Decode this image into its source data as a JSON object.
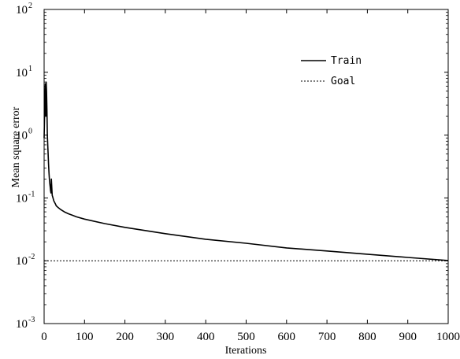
{
  "chart_data": {
    "type": "line",
    "title": "",
    "xlabel": "Iterations",
    "ylabel": "Mean square error",
    "xlim": [
      0,
      1000
    ],
    "ylim": [
      0.001,
      100
    ],
    "yscale": "log",
    "grid": false,
    "legend_position": "top-right",
    "x_ticks": [
      "0",
      "100",
      "200",
      "300",
      "400",
      "500",
      "600",
      "700",
      "800",
      "900",
      "1000"
    ],
    "y_ticks": [
      {
        "value": 0.001,
        "base": "10",
        "exp": "-3"
      },
      {
        "value": 0.01,
        "base": "10",
        "exp": "-2"
      },
      {
        "value": 0.1,
        "base": "10",
        "exp": "-1"
      },
      {
        "value": 1,
        "base": "10",
        "exp": "0"
      },
      {
        "value": 10,
        "base": "10",
        "exp": "1"
      },
      {
        "value": 100,
        "base": "10",
        "exp": "2"
      }
    ],
    "series": [
      {
        "name": "Train",
        "style": "solid",
        "color": "#000000",
        "x": [
          0,
          2,
          3,
          4,
          5,
          6,
          7,
          8,
          9,
          10,
          11,
          12,
          13,
          14,
          15,
          16,
          17,
          18,
          19,
          20,
          22,
          24,
          26,
          28,
          30,
          35,
          40,
          50,
          60,
          70,
          80,
          100,
          150,
          200,
          300,
          400,
          500,
          600,
          700,
          800,
          900,
          1000
        ],
        "y": [
          0.9,
          3.5,
          6.5,
          2.0,
          7.0,
          5.0,
          2.5,
          1.0,
          0.7,
          0.5,
          0.35,
          0.25,
          0.2,
          0.17,
          0.15,
          0.13,
          0.12,
          0.2,
          0.15,
          0.11,
          0.1,
          0.09,
          0.085,
          0.08,
          0.075,
          0.07,
          0.066,
          0.06,
          0.056,
          0.053,
          0.05,
          0.046,
          0.039,
          0.034,
          0.027,
          0.022,
          0.019,
          0.016,
          0.0143,
          0.0127,
          0.0113,
          0.0101
        ]
      },
      {
        "name": "Goal",
        "style": "dashed",
        "color": "#000000",
        "x": [
          0,
          1000
        ],
        "y": [
          0.01,
          0.01
        ]
      }
    ]
  }
}
